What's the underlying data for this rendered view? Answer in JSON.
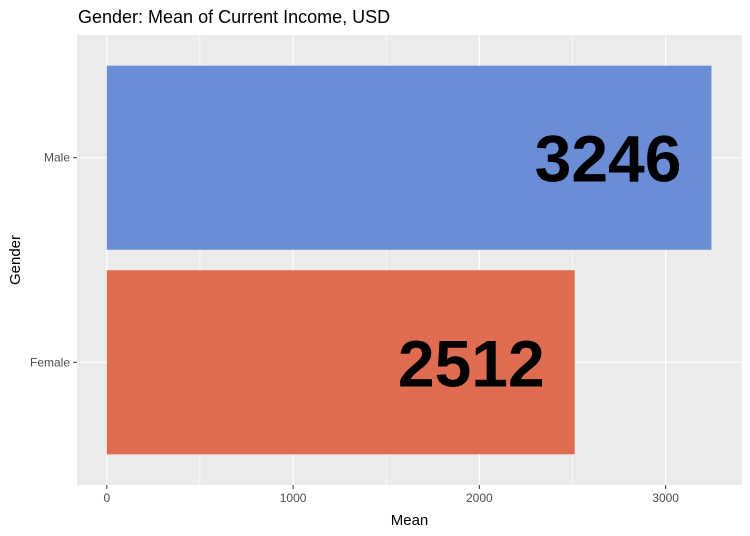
{
  "chart_data": {
    "type": "bar",
    "orientation": "horizontal",
    "title": "Gender: Mean of Current Income, USD",
    "xlabel": "Mean",
    "ylabel": "Gender",
    "categories": [
      "Female",
      "Male"
    ],
    "values": [
      2512,
      3246
    ],
    "data_labels": [
      "2512",
      "3246"
    ],
    "bar_colors": [
      "#e06c52",
      "#6a8dd6"
    ],
    "xlim": [
      -160,
      3410
    ],
    "x_ticks": [
      0,
      1000,
      2000,
      3000
    ],
    "x_tick_labels": [
      "0",
      "1000",
      "2000",
      "3000"
    ],
    "grid": true,
    "panel_background": "#ebebeb",
    "legend": "none"
  }
}
